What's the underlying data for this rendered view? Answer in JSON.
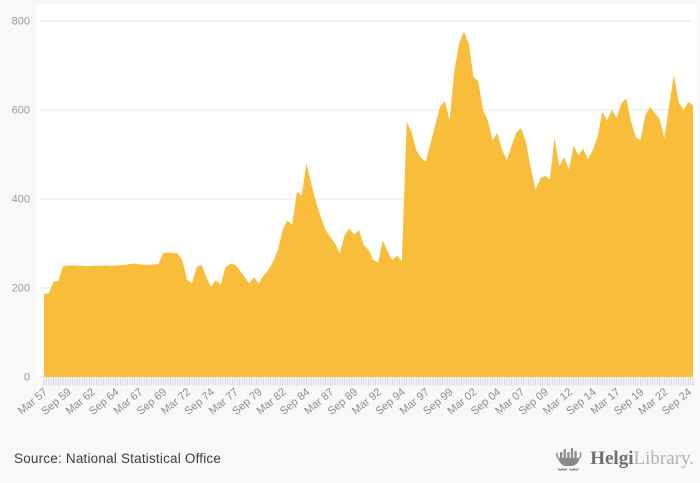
{
  "page": {
    "background_color": "#f8f8f8",
    "plot_background_color": "#ffffff"
  },
  "chart_data": {
    "type": "area",
    "title": "",
    "xlabel": "",
    "ylabel": "",
    "ylim": [
      0,
      800
    ],
    "y_ticks": [
      0,
      200,
      400,
      600,
      800
    ],
    "grid": "horizontal",
    "legend": "none",
    "gridline_color": "#e7e7e7",
    "baseline_color": "#dedede",
    "axis_tick_color": "#c9d3e4",
    "axis_label_color": "#9a9a9a",
    "x_tick_labels": [
      "Mar 57",
      "Sep 59",
      "Mar 62",
      "Sep 64",
      "Mar 67",
      "Sep 69",
      "Mar 72",
      "Sep 74",
      "Mar 77",
      "Sep 79",
      "Mar 82",
      "Sep 84",
      "Mar 87",
      "Sep 89",
      "Mar 92",
      "Sep 94",
      "Mar 97",
      "Sep 99",
      "Mar 02",
      "Sep 04",
      "Mar 07",
      "Sep 09",
      "Mar 12",
      "Sep 14",
      "Mar 17",
      "Sep 19",
      "Mar 22",
      "Sep 24"
    ],
    "points_per_label": 5,
    "minor_tick_divisions": 2,
    "series": [
      {
        "name": "National Statistical Office series",
        "color": "#F8BE3B",
        "frequency": "semiannual",
        "start_period": "Mar 1957",
        "end_period": "Mar 2025",
        "values": [
          187,
          188,
          214,
          216,
          250,
          250,
          251,
          250,
          250,
          249,
          250,
          250,
          250,
          251,
          250,
          250,
          251,
          252,
          254,
          255,
          253,
          252,
          252,
          253,
          254,
          279,
          280,
          279,
          278,
          262,
          218,
          211,
          247,
          252,
          225,
          202,
          218,
          207,
          246,
          254,
          253,
          240,
          225,
          211,
          224,
          210,
          228,
          240,
          259,
          285,
          330,
          352,
          342,
          416,
          408,
          481,
          435,
          393,
          360,
          330,
          315,
          300,
          278,
          319,
          334,
          320,
          330,
          297,
          286,
          263,
          257,
          307,
          282,
          263,
          273,
          260,
          573,
          551,
          510,
          492,
          484,
          525,
          566,
          607,
          620,
          577,
          690,
          750,
          776,
          750,
          674,
          665,
          600,
          577,
          532,
          548,
          510,
          488,
          520,
          550,
          559,
          528,
          470,
          421,
          446,
          452,
          444,
          537,
          474,
          494,
          466,
          520,
          499,
          513,
          489,
          510,
          539,
          596,
          577,
          600,
          582,
          615,
          627,
          575,
          539,
          532,
          588,
          607,
          593,
          580,
          537,
          610,
          679,
          618,
          600,
          618,
          611
        ]
      }
    ]
  },
  "footer": {
    "source_text": "Source: National Statistical Office",
    "logo": {
      "brand_primary": "Helgi",
      "brand_secondary": "Library.",
      "icon": "viking-ship-bar-chart"
    }
  }
}
